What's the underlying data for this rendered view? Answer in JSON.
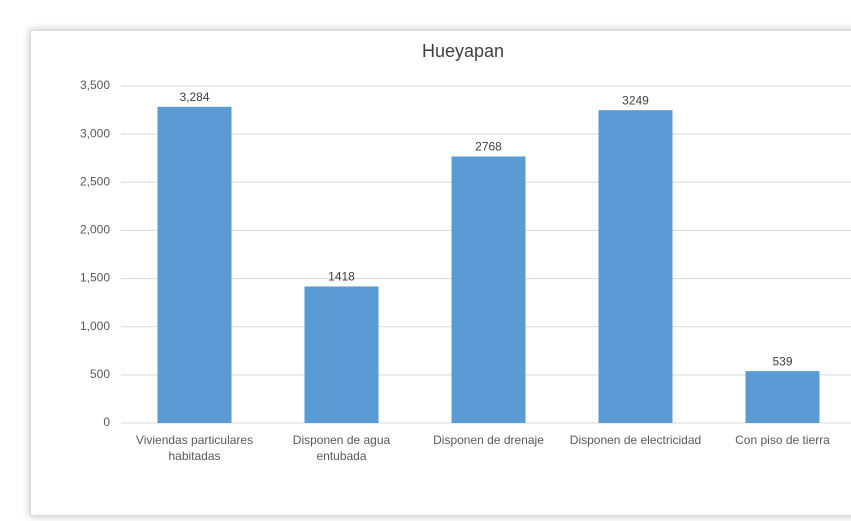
{
  "chart_data": {
    "type": "bar",
    "title": "Hueyapan",
    "categories": [
      "Viviendas particulares habitadas",
      "Disponen de agua entubada",
      "Disponen de drenaje",
      "Disponen de electricidad",
      "Con piso de tierra"
    ],
    "values": [
      3284,
      1418,
      2768,
      3249,
      539
    ],
    "value_labels": [
      "3,284",
      "1418",
      "2768",
      "3249",
      "539"
    ],
    "color": "#5b9bd5",
    "ylim": [
      0,
      3500
    ],
    "yticks": [
      0,
      500,
      {
        "value": 1000,
        "label": "1,000"
      },
      {
        "value": 1500,
        "label": "1,500"
      },
      {
        "value": 2000,
        "label": "2,000"
      },
      {
        "value": 2500,
        "label": "2,500"
      },
      {
        "value": 3000,
        "label": "3,000"
      },
      {
        "value": 3500,
        "label": "3,500"
      }
    ],
    "grid": true
  }
}
